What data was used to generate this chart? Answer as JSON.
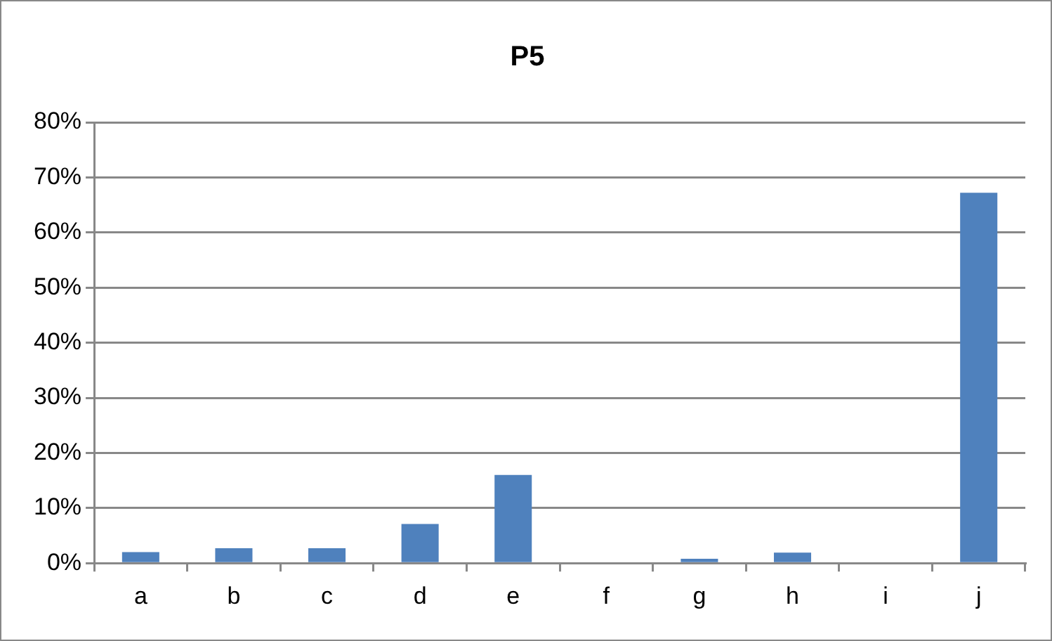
{
  "chart_data": {
    "type": "bar",
    "title": "P5",
    "categories": [
      "a",
      "b",
      "c",
      "d",
      "e",
      "f",
      "g",
      "h",
      "i",
      "j"
    ],
    "values": [
      2,
      2.7,
      2.7,
      7.1,
      16,
      0,
      0.8,
      1.9,
      0,
      67.2
    ],
    "color": "#4f81bd",
    "ylim": [
      0,
      80
    ],
    "yticks": [
      {
        "value": 0,
        "label": "0%"
      },
      {
        "value": 10,
        "label": "10%"
      },
      {
        "value": 20,
        "label": "20%"
      },
      {
        "value": 30,
        "label": "30%"
      },
      {
        "value": 40,
        "label": "40%"
      },
      {
        "value": 50,
        "label": "50%"
      },
      {
        "value": 60,
        "label": "60%"
      },
      {
        "value": 70,
        "label": "70%"
      },
      {
        "value": 80,
        "label": "80%"
      }
    ],
    "grid": "y",
    "legend": false
  }
}
